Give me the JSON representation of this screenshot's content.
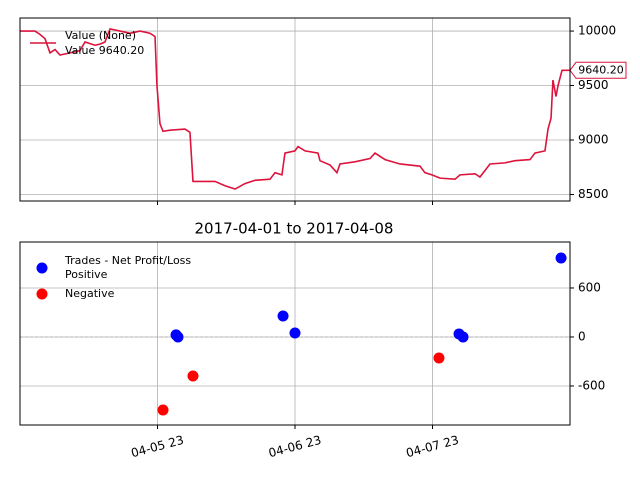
{
  "chart_data": [
    {
      "type": "line",
      "x": [
        0,
        0.109,
        0.145,
        0.182,
        0.218,
        0.255,
        0.291,
        0.364,
        0.436,
        0.473,
        0.545,
        0.582,
        0.618,
        0.655,
        0.727,
        0.8,
        0.873,
        0.945,
        0.982,
        0.996,
        1.018,
        1.04,
        1.091,
        1.2,
        1.236,
        1.258,
        1.418,
        1.491,
        1.564,
        1.636,
        1.709,
        1.818,
        1.855,
        1.905,
        1.927,
        2.0,
        2.022,
        2.073,
        2.167,
        2.182,
        2.255,
        2.305,
        2.327,
        2.436,
        2.545,
        2.582,
        2.655,
        2.764,
        2.909,
        2.945,
        2.996,
        3.055,
        3.164,
        3.2,
        3.309,
        3.345,
        3.382,
        3.418,
        3.527,
        3.6,
        3.709,
        3.745,
        3.818,
        3.84,
        3.862,
        3.876,
        3.898,
        3.913,
        3.942,
        4
      ],
      "series": [
        {
          "name": "Value (None)",
          "color": "#dc143c",
          "values": [
            10000,
            10000,
            9970,
            9930,
            9800,
            9830,
            9780,
            9800,
            9820,
            9900,
            9870,
            9880,
            9900,
            10020,
            10000,
            9980,
            10000,
            9980,
            9950,
            9500,
            9150,
            9080,
            9090,
            9100,
            9070,
            8620,
            8620,
            8580,
            8550,
            8600,
            8630,
            8640,
            8700,
            8680,
            8880,
            8900,
            8940,
            8900,
            8880,
            8810,
            8770,
            8700,
            8780,
            8800,
            8830,
            8880,
            8820,
            8780,
            8760,
            8700,
            8680,
            8650,
            8640,
            8680,
            8690,
            8660,
            8720,
            8780,
            8790,
            8810,
            8820,
            8880,
            8900,
            9100,
            9200,
            9550,
            9400,
            9500,
            9640,
            9640.2
          ]
        }
      ],
      "legend_value_label": "Value 9640.20",
      "last_value_label": "9640.20",
      "xlim": [
        0,
        4
      ],
      "xticks": [
        1,
        2,
        3
      ],
      "ylim": [
        8440,
        10120
      ],
      "yticks": [
        8500,
        9000,
        9500,
        10000
      ],
      "grid": true,
      "legend": "upper left"
    },
    {
      "type": "scatter",
      "title": "2017-04-01 to 2017-04-08",
      "legend_title": "Trades - Net Profit/Loss",
      "series": [
        {
          "name": "Positive",
          "color": "#0000ff",
          "x": [
            1.135,
            1.149,
            1.913,
            2.0,
            3.193,
            3.222,
            3.935
          ],
          "values": [
            25,
            0,
            257,
            49,
            37,
            0,
            967
          ]
        },
        {
          "name": "Negative",
          "color": "#ff0000",
          "x": [
            1.04,
            1.258,
            3.047
          ],
          "values": [
            -894,
            -478,
            -257
          ]
        }
      ],
      "xlim": [
        0,
        4
      ],
      "xticks": [
        {
          "value": 1,
          "label": "04-05 23"
        },
        {
          "value": 2,
          "label": "04-06 23"
        },
        {
          "value": 3,
          "label": "04-07 23"
        }
      ],
      "ylim": [
        -1078,
        1163
      ],
      "yticks": [
        -600,
        0,
        600
      ],
      "grid": true,
      "legend": "upper left"
    }
  ]
}
